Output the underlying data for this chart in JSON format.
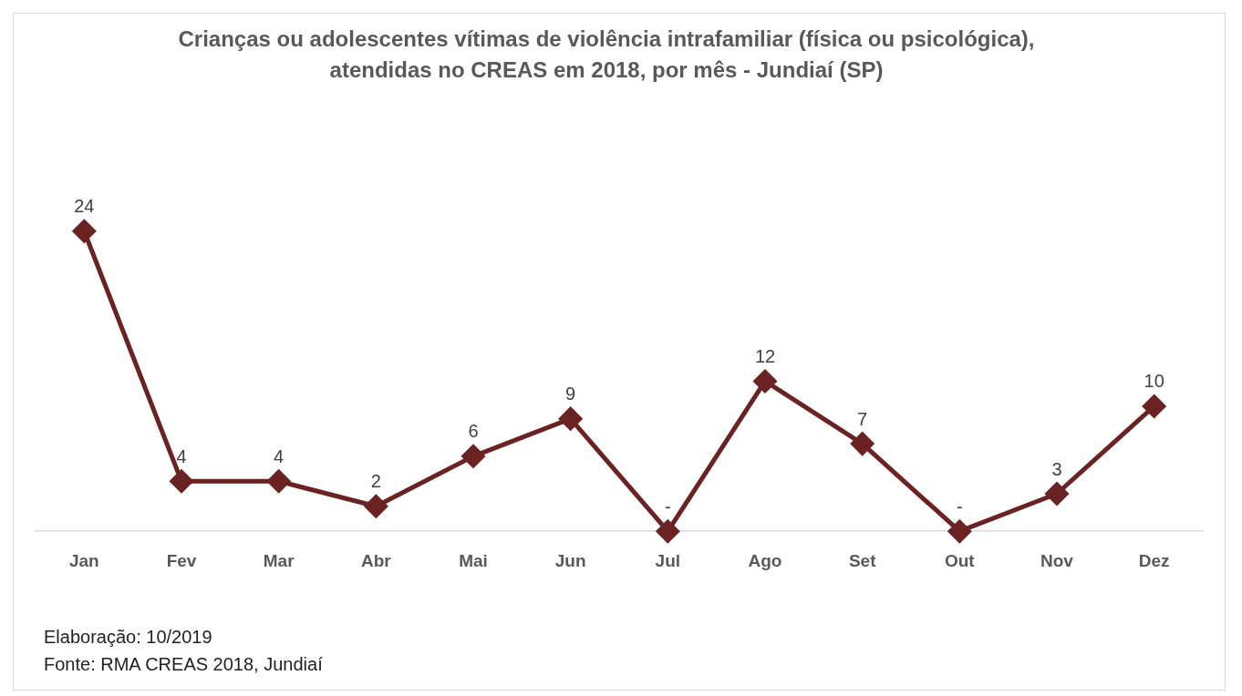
{
  "chart_data": {
    "type": "line",
    "title": "Crianças ou adolescentes vítimas de violência intrafamiliar (física ou psicológica), atendidas no CREAS em 2018, por mês - Jundiaí (SP)",
    "categories": [
      "Jan",
      "Fev",
      "Mar",
      "Abr",
      "Mai",
      "Jun",
      "Jul",
      "Ago",
      "Set",
      "Out",
      "Nov",
      "Dez"
    ],
    "series": [
      {
        "color": "#6b2222",
        "values": [
          24,
          4,
          4,
          2,
          6,
          9,
          0,
          12,
          7,
          0,
          3,
          10
        ],
        "value_labels": [
          "24",
          "4",
          "4",
          "2",
          "6",
          "9",
          "-",
          "12",
          "7",
          "-",
          "3",
          "10"
        ]
      }
    ],
    "marker": "diamond",
    "line_style": "solid",
    "grid": false,
    "legend": false,
    "tick_labels": "x",
    "annotations": [
      "Elaboração: 10/2019",
      "Fonte: RMA CREAS 2018, Jundiaí"
    ]
  }
}
